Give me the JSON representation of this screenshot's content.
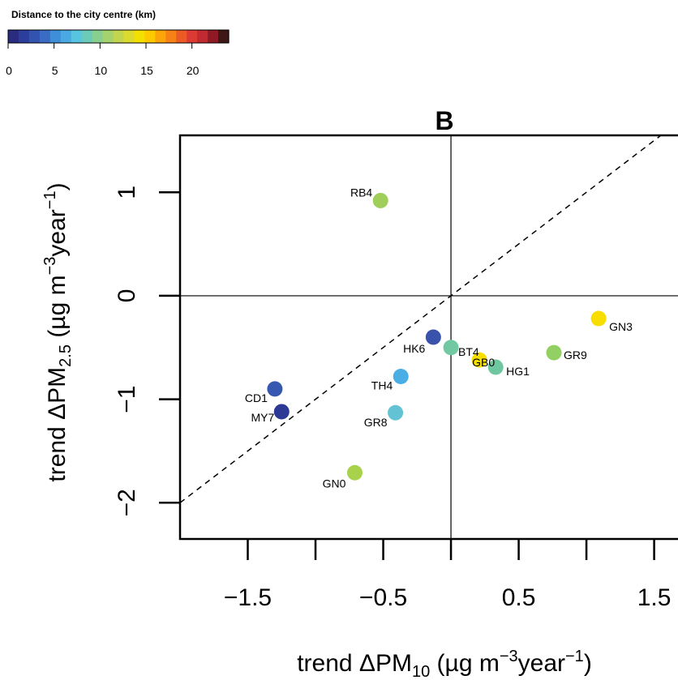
{
  "chart_data": {
    "type": "scatter",
    "title": "B",
    "xlabel": {
      "main": "trend ΔPM",
      "sub": "10",
      "unit_a": " (µg m",
      "sup_a": "−3",
      "unit_b": "year",
      "sup_b": "−1",
      "unit_c": ")"
    },
    "ylabel": {
      "main": "trend ΔPM",
      "sub": "2.5",
      "unit_a": " (µg m",
      "sup_a": "−3",
      "unit_b": "year",
      "sup_b": "−1",
      "unit_c": ")"
    },
    "xlim": [
      -2.0,
      1.7
    ],
    "ylim": [
      -2.35,
      1.55
    ],
    "x_ticks": [
      -1.5,
      -1.0,
      -0.5,
      0.0,
      0.5,
      1.0,
      1.5
    ],
    "x_tick_labels": [
      "−1.5",
      "",
      "−0.5",
      "",
      "0.5",
      "",
      "1.5"
    ],
    "y_ticks": [
      -2,
      -1,
      0,
      1
    ],
    "y_tick_labels": [
      "−2",
      "−1",
      "0",
      "1"
    ],
    "reference_lines": {
      "vertical_x": 0,
      "horizontal_y": 0,
      "diagonal": "y = x (dashed)"
    },
    "grid": false,
    "legend": {
      "title": "Distance to the city centre (km)",
      "placement": "top-left",
      "range": [
        0,
        24
      ],
      "ticks": [
        0,
        5,
        10,
        15,
        20
      ],
      "tick_labels": [
        "0",
        "5",
        "10",
        "15",
        "20"
      ],
      "colors": [
        "#2a2c80",
        "#2c3e9c",
        "#3253b0",
        "#3a6cc6",
        "#3f8fd8",
        "#4aa9e2",
        "#57c4e0",
        "#6ccab9",
        "#88cf8f",
        "#a5d26c",
        "#c2d54e",
        "#dcda2c",
        "#f3e000",
        "#fec900",
        "#fba50a",
        "#f68116",
        "#ec5a26",
        "#dc3a33",
        "#c02a30",
        "#8f1a25",
        "#3e1717"
      ]
    },
    "points": [
      {
        "label": "RB4",
        "x": -0.52,
        "y": 0.92,
        "color": "#9fcf5a"
      },
      {
        "label": "CD1",
        "x": -1.3,
        "y": -0.9,
        "color": "#3658b0"
      },
      {
        "label": "MY7",
        "x": -1.25,
        "y": -1.12,
        "color": "#2c3a96"
      },
      {
        "label": "HK6",
        "x": -0.13,
        "y": -0.4,
        "color": "#3953ad"
      },
      {
        "label": "TH4",
        "x": -0.37,
        "y": -0.78,
        "color": "#4aaee4"
      },
      {
        "label": "GR8",
        "x": -0.41,
        "y": -1.13,
        "color": "#63c3d4"
      },
      {
        "label": "GN0",
        "x": -0.71,
        "y": -1.71,
        "color": "#a8d24c"
      },
      {
        "label": "BT4",
        "x": 0.0,
        "y": -0.5,
        "color": "#72c9a1"
      },
      {
        "label": "GB0",
        "x": 0.21,
        "y": -0.62,
        "color": "#f7e000"
      },
      {
        "label": "HG1",
        "x": 0.33,
        "y": -0.69,
        "color": "#6fc79f"
      },
      {
        "label": "GR9",
        "x": 0.76,
        "y": -0.55,
        "color": "#93d064"
      },
      {
        "label": "GN3",
        "x": 1.09,
        "y": -0.22,
        "color": "#f7dd00"
      }
    ]
  }
}
